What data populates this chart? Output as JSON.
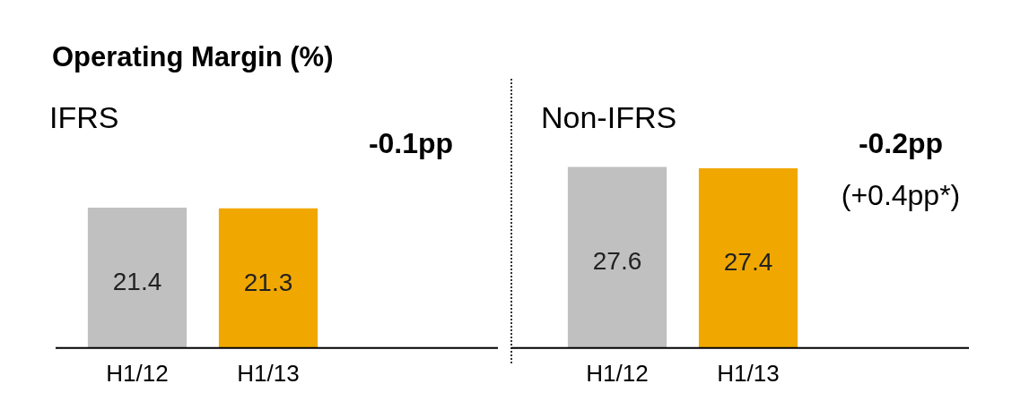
{
  "chart_data": [
    {
      "type": "bar",
      "title": "Operating Margin (%)",
      "subtitle": "IFRS",
      "categories": [
        "H1/12",
        "H1/13"
      ],
      "values": [
        21.4,
        21.3
      ],
      "colors": [
        "#c0c0c0",
        "#f0a800"
      ],
      "data_labels": true,
      "tick_labels": "x",
      "grid": false,
      "legend": false,
      "annotations": [
        "-0.1pp"
      ]
    },
    {
      "type": "bar",
      "subtitle": "Non-IFRS",
      "categories": [
        "H1/12",
        "H1/13"
      ],
      "values": [
        27.6,
        27.4
      ],
      "colors": [
        "#c0c0c0",
        "#f0a800"
      ],
      "data_labels": true,
      "tick_labels": "x",
      "grid": false,
      "legend": false,
      "annotations": [
        "-0.2pp",
        "(+0.4pp*)"
      ]
    }
  ]
}
